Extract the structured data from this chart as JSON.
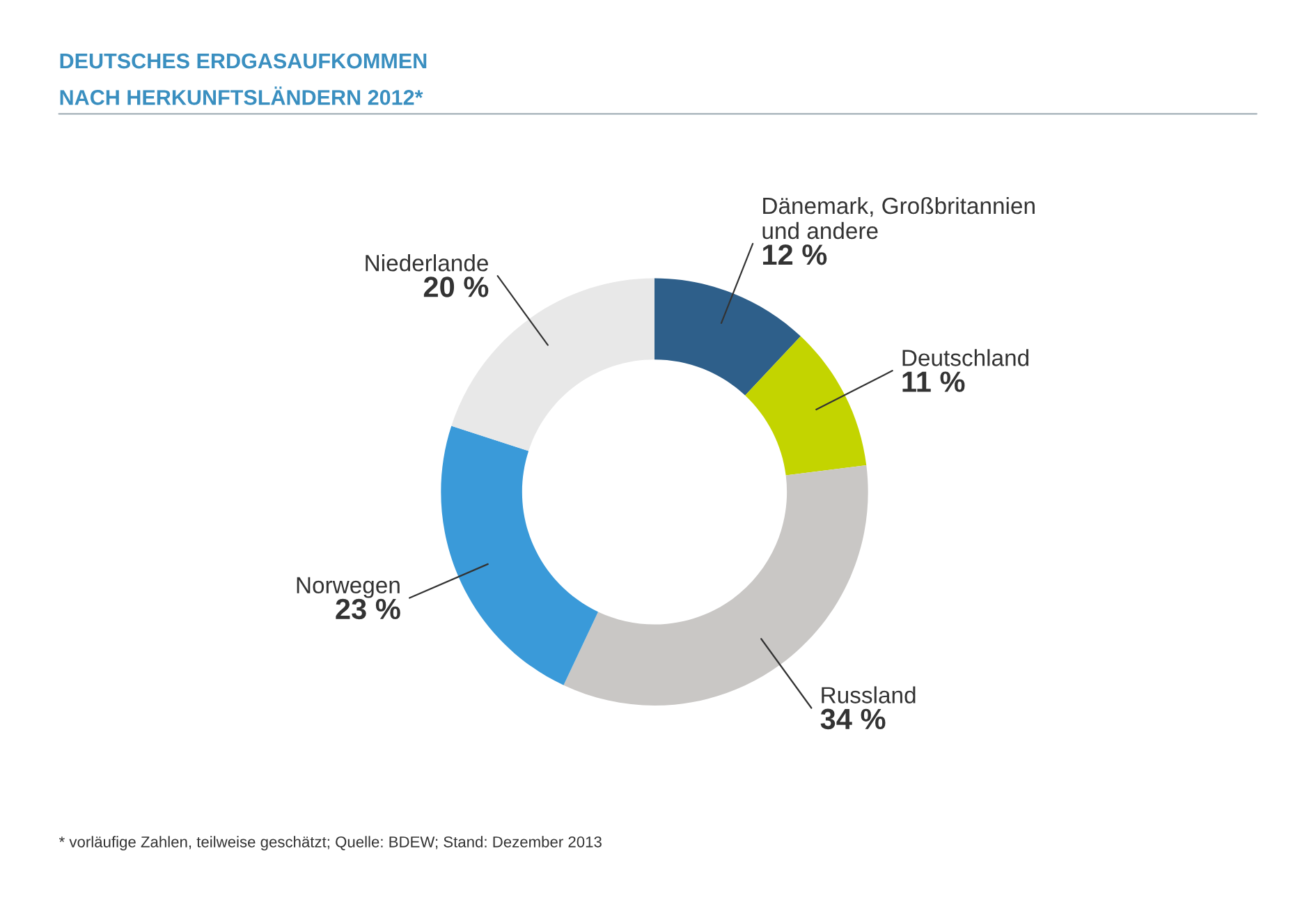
{
  "chart_data": {
    "type": "donut",
    "title": "DEUTSCHES ERDGASAUFKOMMEN",
    "subtitle": "NACH HERKUNFTSLÄNDERN 2012*",
    "categories": [
      "Dänemark, Großbritannien\nund andere",
      "Deutschland",
      "Russland",
      "Norwegen",
      "Niederlande"
    ],
    "values": [
      12,
      11,
      34,
      23,
      20
    ],
    "value_labels": [
      "12 %",
      "11 %",
      "34 %",
      "23 %",
      "20 %"
    ],
    "colors": [
      "#2e5f8a",
      "#c3d400",
      "#c9c7c5",
      "#3a9ad9",
      "#e8e8e8"
    ],
    "annotations": [
      "* vorläufige Zahlen, teilweise geschätzt; Quelle: BDEW; Stand: Dezember 2013"
    ],
    "legend": false
  }
}
